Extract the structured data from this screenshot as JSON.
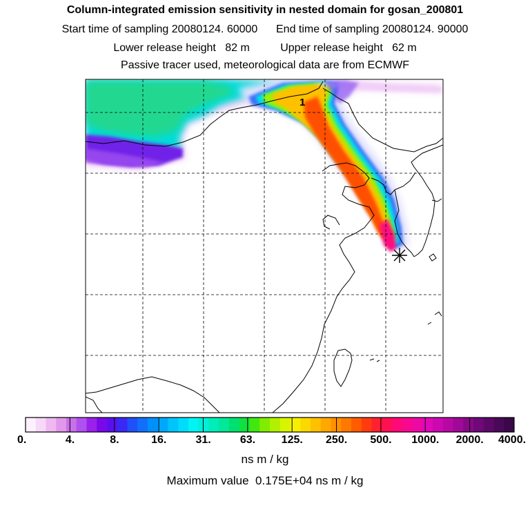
{
  "header": {
    "title": "Column-integrated emission sensitivity in nested domain for gosan_200801",
    "sampling_line": "Start time of sampling 20080124. 60000      End time of sampling 20080124. 90000",
    "height_line": "Lower release height   82 m          Upper release height   62 m",
    "tracer_line": "Passive tracer used, meteorological data are from ECMWF"
  },
  "map": {
    "contour_label": "1",
    "receptor_marker": "star-marker",
    "gridlines": "dashed"
  },
  "colorbar": {
    "tick_labels": [
      "0.",
      "4.",
      "8.",
      "16.",
      "31.",
      "63.",
      "125.",
      "250.",
      "500.",
      "1000.",
      "2000.",
      "4000."
    ],
    "colors": [
      "#fff0ff",
      "#f7d8f7",
      "#efb8f0",
      "#e298ea",
      "#c870e8",
      "#b050f0",
      "#9a20ec",
      "#7a08e8",
      "#5a10ee",
      "#3a28f4",
      "#2050f8",
      "#1070fa",
      "#0090fc",
      "#00a8fc",
      "#00c4fc",
      "#00dcfc",
      "#00f4f4",
      "#00f0d8",
      "#00ecb8",
      "#00e898",
      "#00e070",
      "#10e040",
      "#40e810",
      "#80ec00",
      "#b0f000",
      "#d8f400",
      "#f4f000",
      "#fcd800",
      "#ffc000",
      "#ffa800",
      "#ff9000",
      "#ff7800",
      "#ff5c00",
      "#ff3c10",
      "#ff2030",
      "#ff1050",
      "#ff0878",
      "#f80890",
      "#ee08a4",
      "#e008b8",
      "#cc08b0",
      "#b808a4",
      "#a00898",
      "#880888",
      "#700878",
      "#5c0868",
      "#4a0858",
      "#3a0848"
    ]
  },
  "footer": {
    "unit_label": "ns m / kg",
    "max_value_label": "Maximum value  0.175E+04 ns m / kg"
  }
}
